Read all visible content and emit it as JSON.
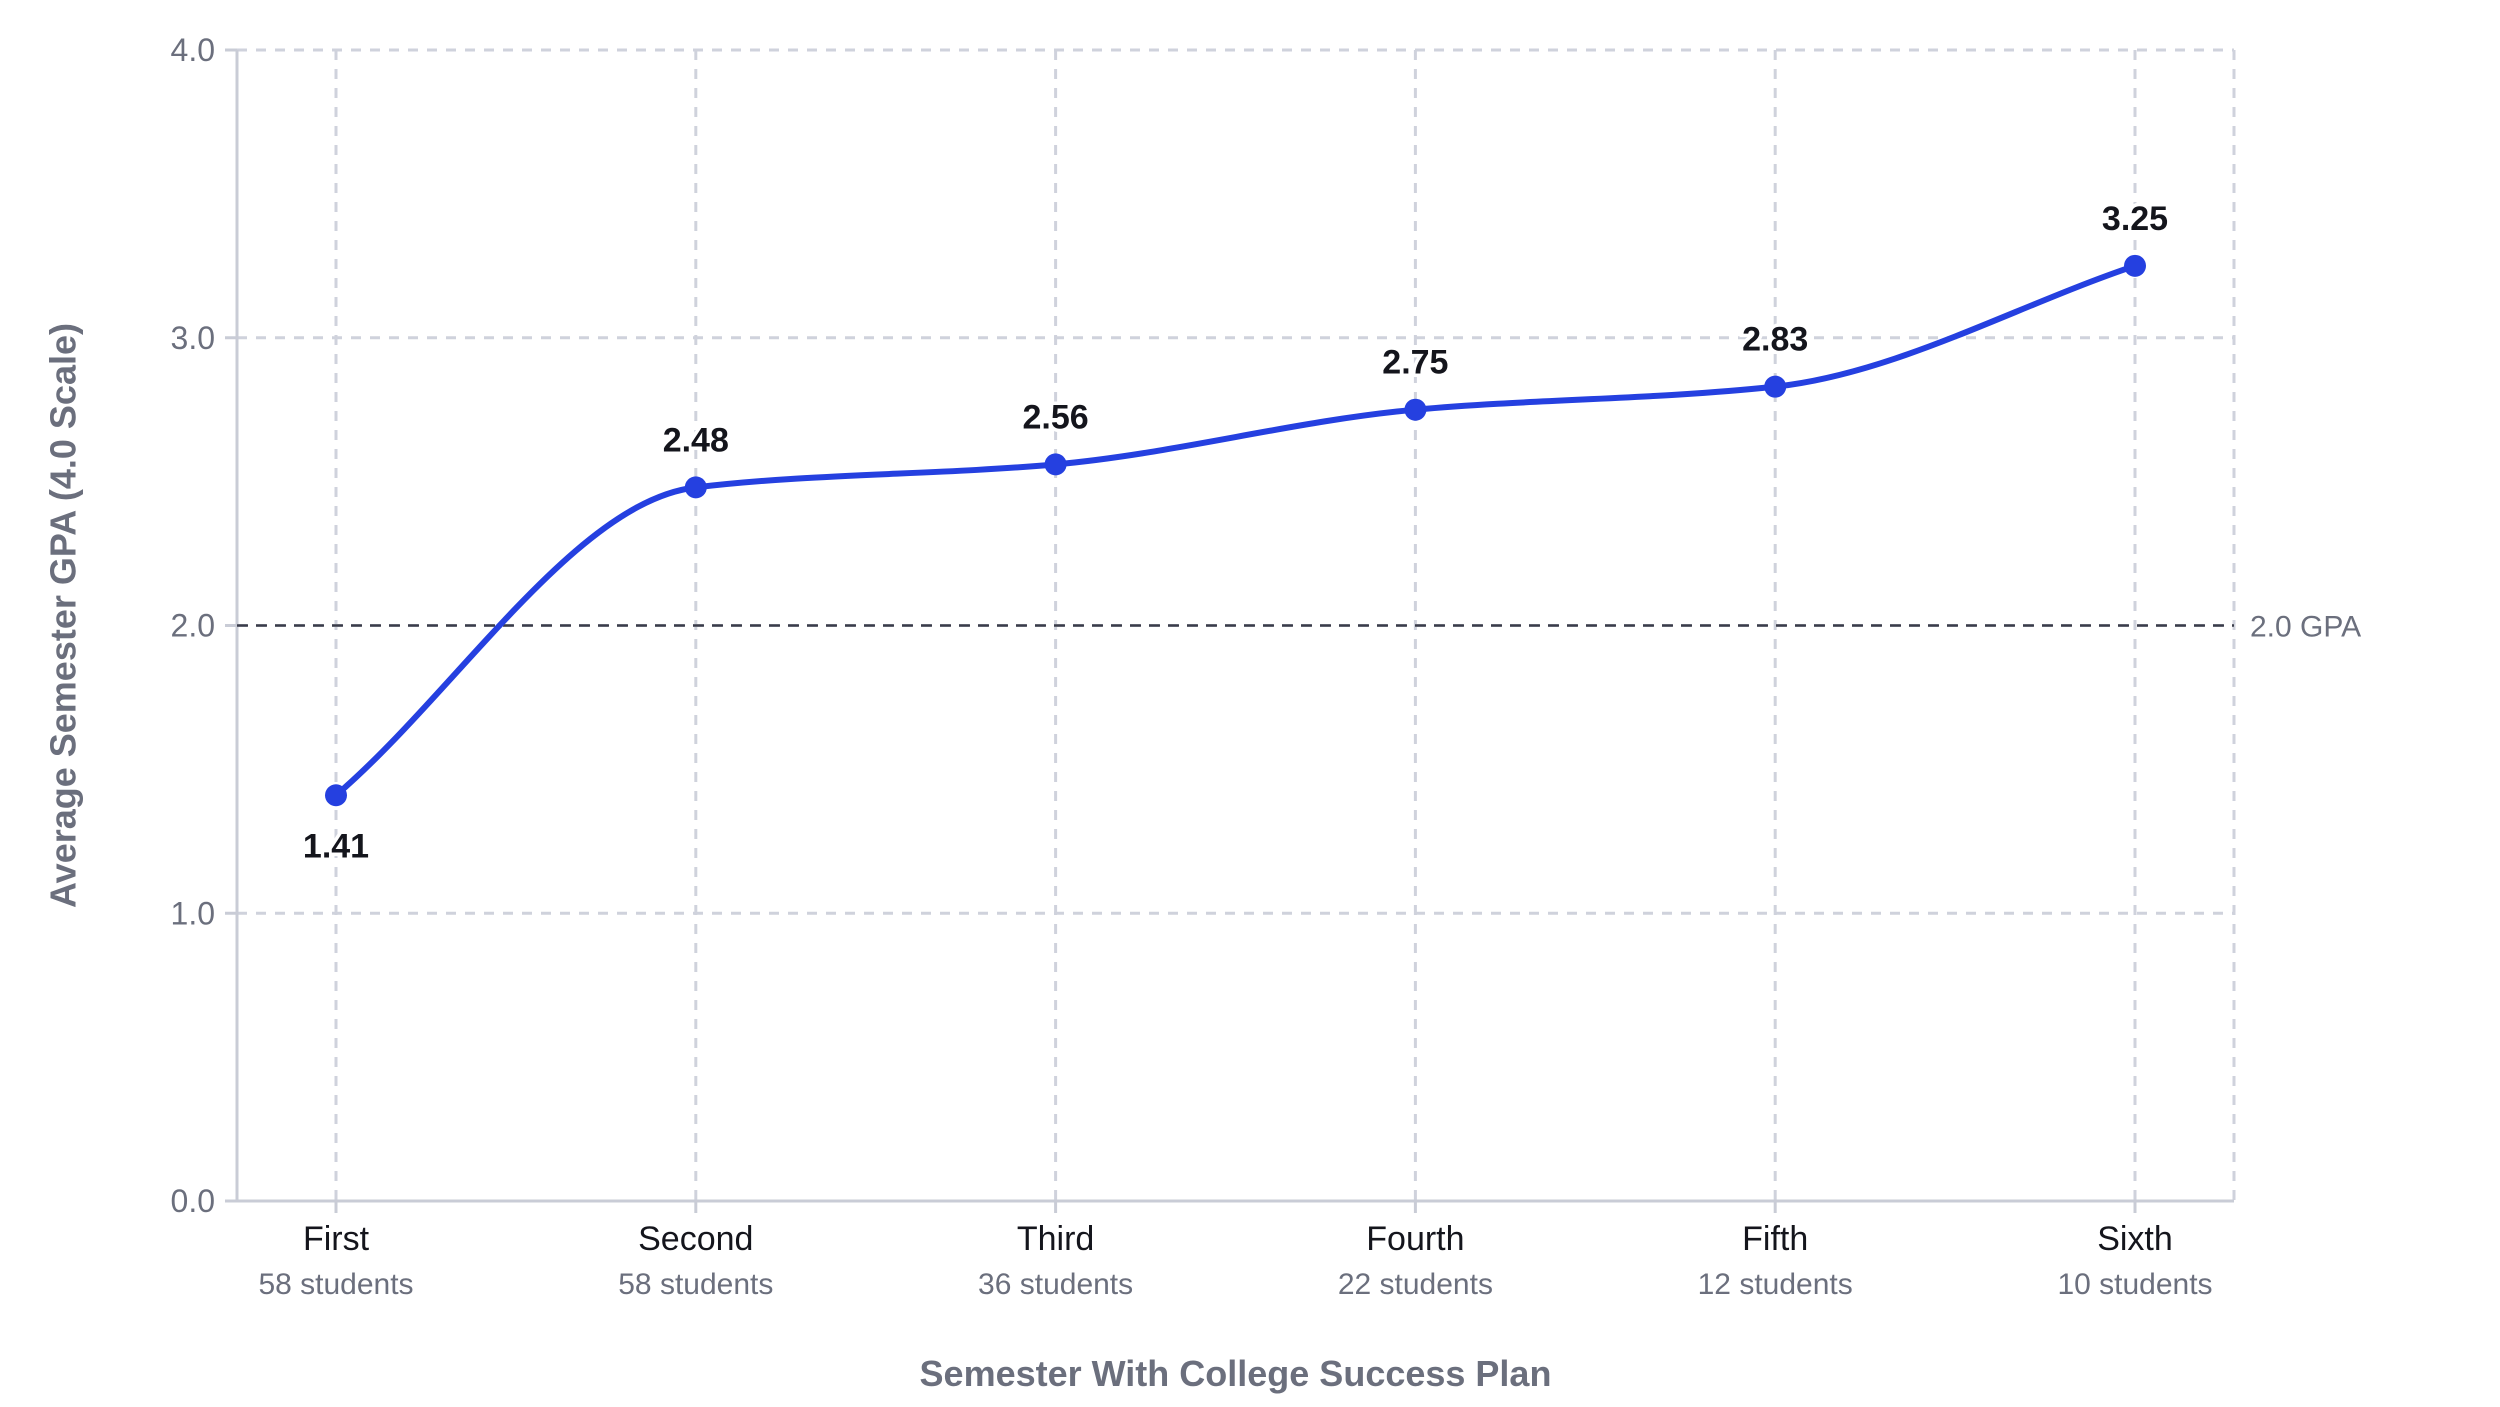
{
  "chart_data": {
    "type": "line",
    "categories": [
      "First",
      "Second",
      "Third",
      "Fourth",
      "Fifth",
      "Sixth"
    ],
    "category_sublabels": [
      "58 students",
      "58 students",
      "36 students",
      "22 students",
      "12 students",
      "10 students"
    ],
    "series": [
      {
        "values": [
          1.41,
          2.48,
          2.56,
          2.75,
          2.83,
          3.25
        ],
        "data_labels": [
          "1.41",
          "2.48",
          "2.56",
          "2.75",
          "2.83",
          "3.25"
        ],
        "color": "#2540e0"
      }
    ],
    "xlabel": "Semester With College Success Plan",
    "ylabel": "Average Semester GPA (4.0 Scale)",
    "ylim": [
      0,
      4
    ],
    "yticks": [
      0,
      1,
      2,
      3,
      4
    ],
    "ytick_labels": [
      "0.0",
      "1.0",
      "2.0",
      "3.0",
      "4.0"
    ],
    "grid": true,
    "reference_line": {
      "value": 2.0,
      "label": "2.0 GPA",
      "style": "dashed"
    }
  }
}
